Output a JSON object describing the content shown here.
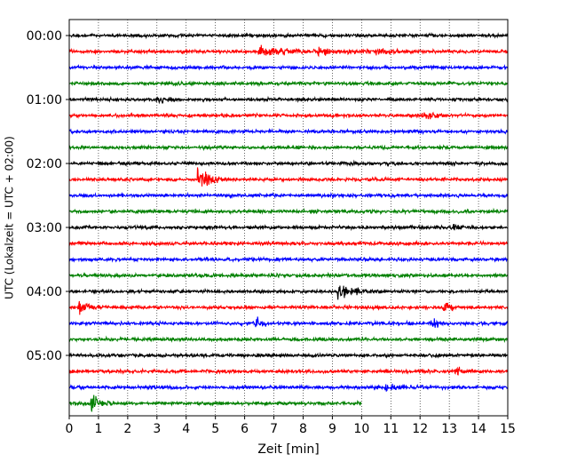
{
  "chart_data": {
    "type": "line",
    "subtype": "helicorder",
    "xlabel": "Zeit  [min]",
    "ylabel": "UTC (Lokalzeit = UTC + 02:00)",
    "xlim": [
      0,
      15
    ],
    "x_ticks": [
      0,
      1,
      2,
      3,
      4,
      5,
      6,
      7,
      8,
      9,
      10,
      11,
      12,
      13,
      14,
      15
    ],
    "x_tick_labels": [
      "0",
      "1",
      "2",
      "3",
      "4",
      "5",
      "6",
      "7",
      "8",
      "9",
      "10",
      "11",
      "12",
      "13",
      "14",
      "15"
    ],
    "x_grid": true,
    "x_grid_style": "dotted",
    "y_tick_labels": [
      "00:00",
      "01:00",
      "02:00",
      "03:00",
      "04:00",
      "05:00"
    ],
    "y_tick_rows": [
      0,
      4,
      8,
      12,
      16,
      20
    ],
    "row_interval_min": 15,
    "trace_colors": [
      "#000000",
      "#ff0000",
      "#0000ff",
      "#008000"
    ],
    "rows": [
      {
        "time": "00:00",
        "color": "#000000",
        "end_min": 15,
        "events": []
      },
      {
        "time": "00:15",
        "color": "#ff0000",
        "end_min": 15,
        "events": [
          {
            "t": 6.5,
            "amp": 0.7,
            "dur": 1.2
          },
          {
            "t": 8.5,
            "amp": 0.45,
            "dur": 1.6
          },
          {
            "t": 10.5,
            "amp": 0.2,
            "dur": 1.0
          }
        ]
      },
      {
        "time": "00:30",
        "color": "#0000ff",
        "end_min": 15,
        "events": []
      },
      {
        "time": "00:45",
        "color": "#008000",
        "end_min": 15,
        "events": []
      },
      {
        "time": "01:00",
        "color": "#000000",
        "end_min": 15,
        "events": [
          {
            "t": 3.0,
            "amp": 0.35,
            "dur": 0.5
          }
        ]
      },
      {
        "time": "01:15",
        "color": "#ff0000",
        "end_min": 15,
        "events": [
          {
            "t": 12.1,
            "amp": 0.4,
            "dur": 0.6
          }
        ]
      },
      {
        "time": "01:30",
        "color": "#0000ff",
        "end_min": 15,
        "events": []
      },
      {
        "time": "01:45",
        "color": "#008000",
        "end_min": 15,
        "events": []
      },
      {
        "time": "02:00",
        "color": "#000000",
        "end_min": 15,
        "events": []
      },
      {
        "time": "02:15",
        "color": "#ff0000",
        "end_min": 15,
        "events": [
          {
            "t": 4.4,
            "amp": 1.8,
            "dur": 0.5
          }
        ]
      },
      {
        "time": "02:30",
        "color": "#0000ff",
        "end_min": 15,
        "events": []
      },
      {
        "time": "02:45",
        "color": "#008000",
        "end_min": 15,
        "events": []
      },
      {
        "time": "03:00",
        "color": "#000000",
        "end_min": 15,
        "events": [
          {
            "t": 13.1,
            "amp": 0.35,
            "dur": 0.3
          }
        ]
      },
      {
        "time": "03:15",
        "color": "#ff0000",
        "end_min": 15,
        "events": []
      },
      {
        "time": "03:30",
        "color": "#0000ff",
        "end_min": 15,
        "events": []
      },
      {
        "time": "03:45",
        "color": "#008000",
        "end_min": 15,
        "events": []
      },
      {
        "time": "04:00",
        "color": "#000000",
        "end_min": 15,
        "events": [
          {
            "t": 9.2,
            "amp": 1.0,
            "dur": 0.9
          }
        ]
      },
      {
        "time": "04:15",
        "color": "#ff0000",
        "end_min": 15,
        "events": [
          {
            "t": 0.35,
            "amp": 0.7,
            "dur": 0.5
          },
          {
            "t": 12.8,
            "amp": 0.9,
            "dur": 0.2
          }
        ]
      },
      {
        "time": "04:30",
        "color": "#0000ff",
        "end_min": 15,
        "events": [
          {
            "t": 6.4,
            "amp": 1.2,
            "dur": 0.2
          },
          {
            "t": 12.4,
            "amp": 0.9,
            "dur": 0.2
          }
        ]
      },
      {
        "time": "04:45",
        "color": "#008000",
        "end_min": 15,
        "events": []
      },
      {
        "time": "05:00",
        "color": "#000000",
        "end_min": 15,
        "events": []
      },
      {
        "time": "05:15",
        "color": "#ff0000",
        "end_min": 15,
        "events": [
          {
            "t": 13.2,
            "amp": 0.9,
            "dur": 0.2
          }
        ]
      },
      {
        "time": "05:30",
        "color": "#0000ff",
        "end_min": 15,
        "events": [
          {
            "t": 10.8,
            "amp": 0.35,
            "dur": 0.8
          }
        ]
      },
      {
        "time": "05:45",
        "color": "#008000",
        "end_min": 10,
        "events": [
          {
            "t": 0.75,
            "amp": 1.5,
            "dur": 0.4
          }
        ]
      }
    ]
  }
}
